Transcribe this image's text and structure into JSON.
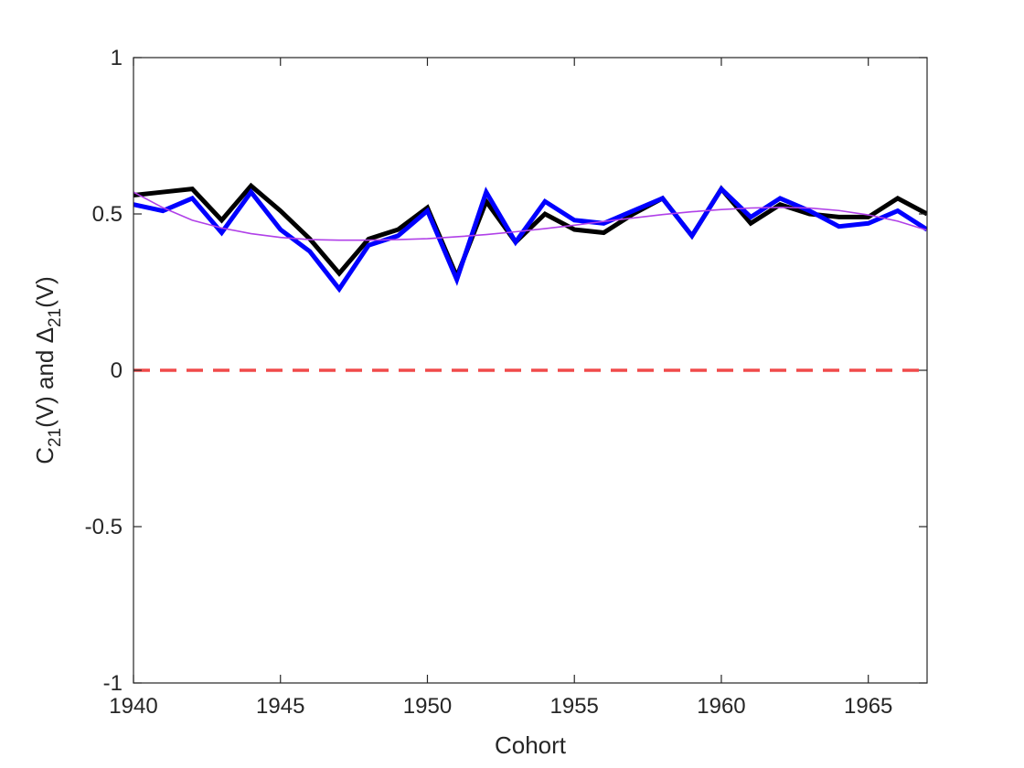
{
  "chart_data": {
    "type": "line",
    "title": "",
    "xlabel": "Cohort",
    "ylabel_parts": {
      "c": "C",
      "c_sub": "21",
      "c_tail": "(V) and ",
      "delta": "Δ",
      "delta_sub": "21",
      "delta_tail": "(V)"
    },
    "xlim": [
      1940,
      1967
    ],
    "ylim": [
      -1,
      1
    ],
    "xticks": [
      1940,
      1945,
      1950,
      1955,
      1960,
      1965
    ],
    "yticks": [
      -1,
      -0.5,
      0,
      0.5,
      1
    ],
    "ytick_labels": [
      "-1",
      "-0.5",
      "0",
      "0.5",
      "1"
    ],
    "grid": false,
    "legend": "none",
    "x": [
      1940,
      1941,
      1942,
      1943,
      1944,
      1945,
      1946,
      1947,
      1948,
      1949,
      1950,
      1951,
      1952,
      1953,
      1954,
      1955,
      1956,
      1957,
      1958,
      1959,
      1960,
      1961,
      1962,
      1963,
      1964,
      1965,
      1966,
      1967
    ],
    "series": [
      {
        "color": "#000000",
        "style": "solid-thick",
        "values": [
          0.56,
          0.57,
          0.58,
          0.48,
          0.59,
          0.51,
          0.42,
          0.31,
          0.42,
          0.45,
          0.52,
          0.3,
          0.54,
          0.41,
          0.5,
          0.45,
          0.44,
          0.5,
          0.55,
          0.43,
          0.58,
          0.47,
          0.53,
          0.5,
          0.49,
          0.49,
          0.55,
          0.5
        ]
      },
      {
        "color": "#0000ff",
        "style": "solid-thick",
        "values": [
          0.53,
          0.51,
          0.55,
          0.44,
          0.57,
          0.45,
          0.38,
          0.26,
          0.4,
          0.43,
          0.51,
          0.29,
          0.57,
          0.41,
          0.54,
          0.48,
          0.47,
          0.51,
          0.55,
          0.43,
          0.58,
          0.49,
          0.55,
          0.51,
          0.46,
          0.47,
          0.51,
          0.45
        ]
      },
      {
        "color": "#b040e8",
        "style": "solid-thin",
        "values": [
          0.57,
          0.52,
          0.48,
          0.455,
          0.437,
          0.425,
          0.418,
          0.416,
          0.416,
          0.418,
          0.421,
          0.427,
          0.434,
          0.443,
          0.453,
          0.464,
          0.476,
          0.487,
          0.498,
          0.507,
          0.514,
          0.519,
          0.521,
          0.519,
          0.511,
          0.497,
          0.477,
          0.448
        ]
      }
    ],
    "reference_line": {
      "y": 0,
      "color": "#f04a4a",
      "style": "dashed"
    }
  }
}
